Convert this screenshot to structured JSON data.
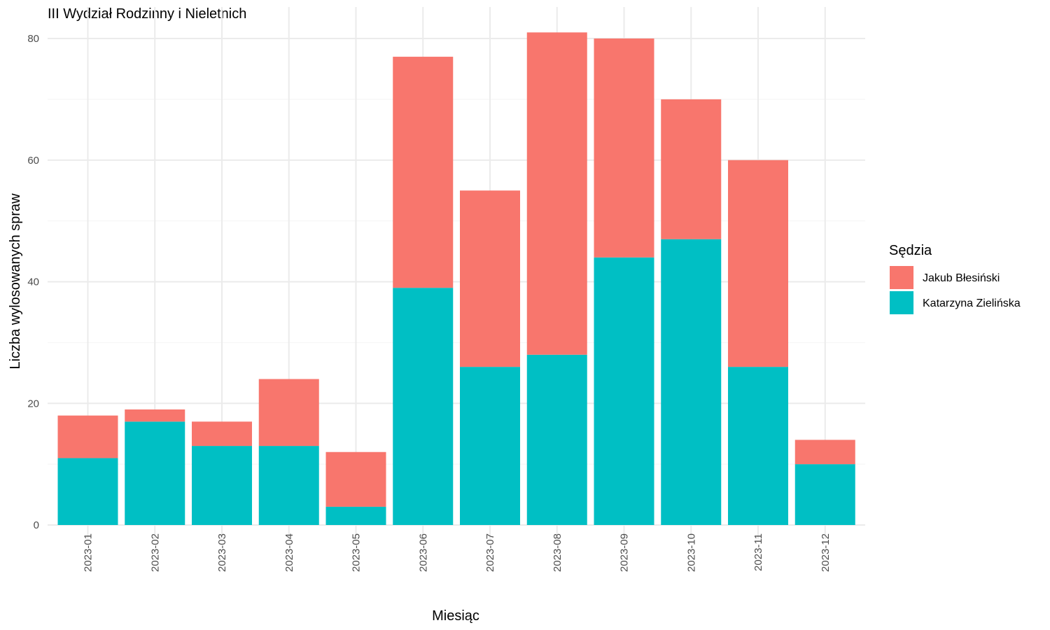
{
  "chart_data": {
    "type": "bar",
    "stacked": true,
    "title": "III Wydział Rodzinny i Nieletnich",
    "xlabel": "Miesiąc",
    "ylabel": "Liczba wylosowanych spraw",
    "ylim": [
      0,
      85
    ],
    "yticks": [
      0,
      20,
      40,
      60,
      80
    ],
    "grid": true,
    "legend": {
      "title": "Sędzia",
      "position": "right"
    },
    "categories": [
      "2023-01",
      "2023-02",
      "2023-03",
      "2023-04",
      "2023-05",
      "2023-06",
      "2023-07",
      "2023-08",
      "2023-09",
      "2023-10",
      "2023-11",
      "2023-12"
    ],
    "series": [
      {
        "name": "Katarzyna Zielińska",
        "color": "#00BFC4",
        "values": [
          11,
          17,
          13,
          13,
          3,
          39,
          26,
          28,
          44,
          47,
          26,
          10
        ]
      },
      {
        "name": "Jakub Błesiński",
        "color": "#F8766D",
        "values": [
          7,
          2,
          4,
          11,
          9,
          38,
          29,
          53,
          36,
          23,
          34,
          4
        ]
      }
    ],
    "legend_order": [
      "Jakub Błesiński",
      "Katarzyna Zielińska"
    ]
  }
}
